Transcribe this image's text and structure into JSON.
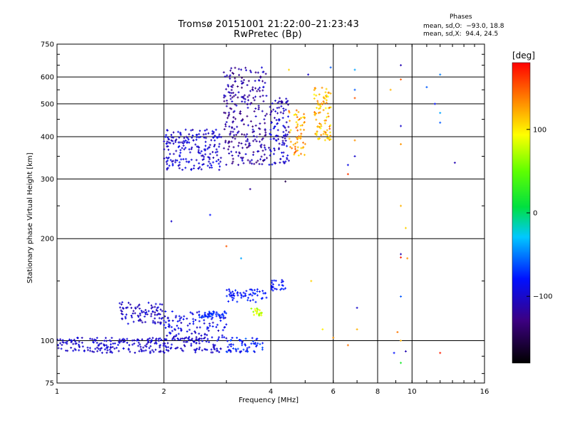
{
  "chart_data": {
    "type": "scatter",
    "title": "Tromsø 20151001 21:22:00–21:23:43",
    "subtitle": "RwPretec (Bp)",
    "xlabel": "Frequency [MHz]",
    "ylabel": "Stationary phase Virtual Height [km]",
    "x_scale": "log",
    "y_scale": "log",
    "xlim": [
      1,
      16
    ],
    "ylim": [
      75,
      750
    ],
    "x_ticks": [
      1,
      2,
      4,
      6,
      8,
      10,
      16
    ],
    "x_tick_labels": [
      "1",
      "2",
      "4",
      "6",
      "8",
      "10",
      "16"
    ],
    "y_ticks": [
      75,
      100,
      200,
      300,
      400,
      500,
      600,
      750
    ],
    "y_tick_labels": [
      "75",
      "100",
      "200",
      "300",
      "400",
      "500",
      "600",
      "750"
    ],
    "grid": true,
    "stats": {
      "title": "Phases",
      "line_o": "mean, sd,O:  −93.0, 18.8",
      "line_x": "mean, sd,X:  94.4, 24.5"
    },
    "colorbar": {
      "label": "[deg]",
      "range": [
        -180,
        180
      ],
      "tick_labels": [
        "100",
        "0",
        "−100"
      ],
      "tick_values": [
        100,
        0,
        -100
      ]
    },
    "clusters": [
      {
        "x": [
          1.0,
          2.9
        ],
        "y": [
          92,
          102
        ],
        "phase": [
          -110,
          -90
        ],
        "n": 260
      },
      {
        "x": [
          1.5,
          2.0
        ],
        "y": [
          112,
          130
        ],
        "phase": [
          -115,
          -90
        ],
        "n": 90
      },
      {
        "x": [
          2.0,
          3.0
        ],
        "y": [
          100,
          122
        ],
        "phase": [
          -110,
          -80
        ],
        "n": 120
      },
      {
        "x": [
          2.5,
          3.0
        ],
        "y": [
          117,
          122
        ],
        "phase": [
          -80,
          -65
        ],
        "n": 40
      },
      {
        "x": [
          3.0,
          3.8
        ],
        "y": [
          92,
          102
        ],
        "phase": [
          -100,
          -60
        ],
        "n": 60
      },
      {
        "x": [
          3.0,
          3.9
        ],
        "y": [
          130,
          142
        ],
        "phase": [
          -90,
          -70
        ],
        "n": 60
      },
      {
        "x": [
          4.0,
          4.4
        ],
        "y": [
          140,
          152
        ],
        "phase": [
          -90,
          -70
        ],
        "n": 25
      },
      {
        "x": [
          3.5,
          3.8
        ],
        "y": [
          118,
          125
        ],
        "phase": [
          60,
          100
        ],
        "n": 20
      },
      {
        "x": [
          2.0,
          2.9
        ],
        "y": [
          318,
          420
        ],
        "phase": [
          -115,
          -85
        ],
        "n": 200
      },
      {
        "x": [
          2.95,
          3.9
        ],
        "y": [
          330,
          640
        ],
        "phase": [
          -135,
          -95
        ],
        "n": 260
      },
      {
        "x": [
          3.95,
          4.5
        ],
        "y": [
          330,
          520
        ],
        "phase": [
          -120,
          -85
        ],
        "n": 110
      },
      {
        "x": [
          4.5,
          5.0
        ],
        "y": [
          350,
          480
        ],
        "phase": [
          100,
          150
        ],
        "n": 60
      },
      {
        "x": [
          5.3,
          5.9
        ],
        "y": [
          390,
          560
        ],
        "phase": [
          90,
          150
        ],
        "n": 90
      }
    ],
    "points": [
      {
        "x": 3.0,
        "y": 190,
        "phase": 150
      },
      {
        "x": 2.1,
        "y": 225,
        "phase": -100
      },
      {
        "x": 2.7,
        "y": 235,
        "phase": -80
      },
      {
        "x": 3.5,
        "y": 280,
        "phase": -120
      },
      {
        "x": 3.3,
        "y": 175,
        "phase": -40
      },
      {
        "x": 4.4,
        "y": 295,
        "phase": -150
      },
      {
        "x": 5.2,
        "y": 150,
        "phase": 110
      },
      {
        "x": 4.5,
        "y": 630,
        "phase": 110
      },
      {
        "x": 5.1,
        "y": 610,
        "phase": -100
      },
      {
        "x": 5.9,
        "y": 640,
        "phase": -60
      },
      {
        "x": 6.9,
        "y": 630,
        "phase": -40
      },
      {
        "x": 6.9,
        "y": 550,
        "phase": -60
      },
      {
        "x": 6.9,
        "y": 520,
        "phase": 150
      },
      {
        "x": 6.9,
        "y": 390,
        "phase": 130
      },
      {
        "x": 6.9,
        "y": 350,
        "phase": -100
      },
      {
        "x": 6.6,
        "y": 330,
        "phase": -90
      },
      {
        "x": 6.6,
        "y": 310,
        "phase": 160
      },
      {
        "x": 7.0,
        "y": 125,
        "phase": -100
      },
      {
        "x": 7.0,
        "y": 108,
        "phase": 120
      },
      {
        "x": 6.6,
        "y": 97,
        "phase": 140
      },
      {
        "x": 6.0,
        "y": 102,
        "phase": 130
      },
      {
        "x": 5.6,
        "y": 108,
        "phase": 100
      },
      {
        "x": 8.7,
        "y": 550,
        "phase": 120
      },
      {
        "x": 9.3,
        "y": 650,
        "phase": -110
      },
      {
        "x": 9.3,
        "y": 590,
        "phase": 150
      },
      {
        "x": 9.3,
        "y": 430,
        "phase": -100
      },
      {
        "x": 9.3,
        "y": 380,
        "phase": 130
      },
      {
        "x": 9.3,
        "y": 250,
        "phase": 120
      },
      {
        "x": 9.6,
        "y": 215,
        "phase": 110
      },
      {
        "x": 9.3,
        "y": 180,
        "phase": -110
      },
      {
        "x": 9.3,
        "y": 176,
        "phase": 170
      },
      {
        "x": 9.7,
        "y": 175,
        "phase": 130
      },
      {
        "x": 9.3,
        "y": 135,
        "phase": -60
      },
      {
        "x": 9.1,
        "y": 106,
        "phase": 140
      },
      {
        "x": 9.3,
        "y": 100,
        "phase": 120
      },
      {
        "x": 9.3,
        "y": 86,
        "phase": 20
      },
      {
        "x": 8.9,
        "y": 92,
        "phase": -80
      },
      {
        "x": 9.6,
        "y": 93,
        "phase": -110
      },
      {
        "x": 11.0,
        "y": 560,
        "phase": -60
      },
      {
        "x": 11.6,
        "y": 500,
        "phase": -80
      },
      {
        "x": 12.0,
        "y": 470,
        "phase": -40
      },
      {
        "x": 12.0,
        "y": 440,
        "phase": -60
      },
      {
        "x": 12.0,
        "y": 610,
        "phase": -50
      },
      {
        "x": 12.0,
        "y": 92,
        "phase": 170
      },
      {
        "x": 13.2,
        "y": 335,
        "phase": -110
      }
    ]
  }
}
